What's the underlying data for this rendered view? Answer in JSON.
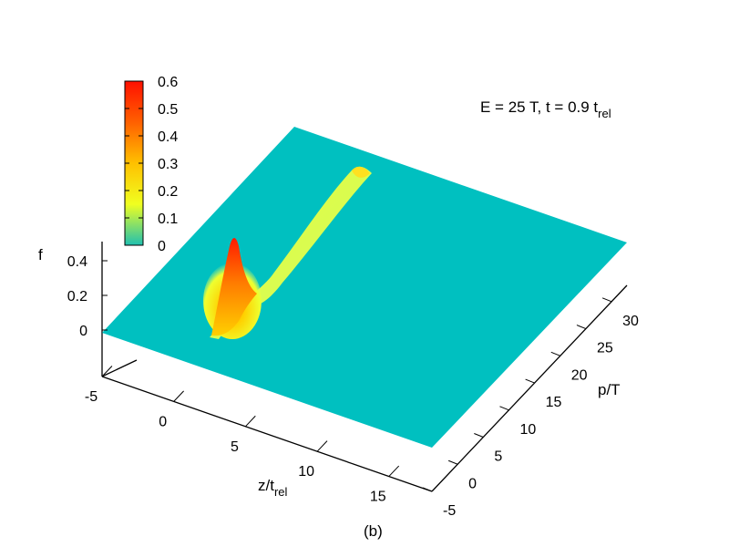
{
  "chart_data": {
    "type": "surface3d",
    "annotation": {
      "main": "E = 25 T, t = 0.9 t",
      "sub": "rel"
    },
    "panel_label": "(b)",
    "z_axis": {
      "label": "f",
      "ticks": [
        "0",
        "0.2",
        "0.4"
      ]
    },
    "x_axis": {
      "label_main": "z/t",
      "label_sub": "rel",
      "range": [
        -5,
        18
      ],
      "ticks": [
        "-5",
        "0",
        "5",
        "10",
        "15"
      ]
    },
    "y_axis": {
      "label": "p/T",
      "range": [
        -5,
        33
      ],
      "ticks": [
        "-5",
        "0",
        "5",
        "10",
        "15",
        "20",
        "25",
        "30"
      ]
    },
    "colorbar": {
      "ticks": [
        "0",
        "0.1",
        "0.2",
        "0.3",
        "0.4",
        "0.5",
        "0.6"
      ],
      "range": [
        0,
        0.6
      ],
      "colors": [
        "#20c0b0",
        "#f0ff20",
        "#ffc000",
        "#ff6000",
        "#ff1000"
      ]
    },
    "surface": {
      "background_color": "#00c0c0",
      "ridge": [
        {
          "z": 2.5,
          "p": 8,
          "f": 0.1
        },
        {
          "z": 3.5,
          "p": 12,
          "f": 0.4
        },
        {
          "z": 5.5,
          "p": 17,
          "f": 0.12
        },
        {
          "z": 9,
          "p": 26,
          "f": 0.1
        },
        {
          "z": 11,
          "p": 30,
          "f": 0.2
        }
      ]
    }
  }
}
